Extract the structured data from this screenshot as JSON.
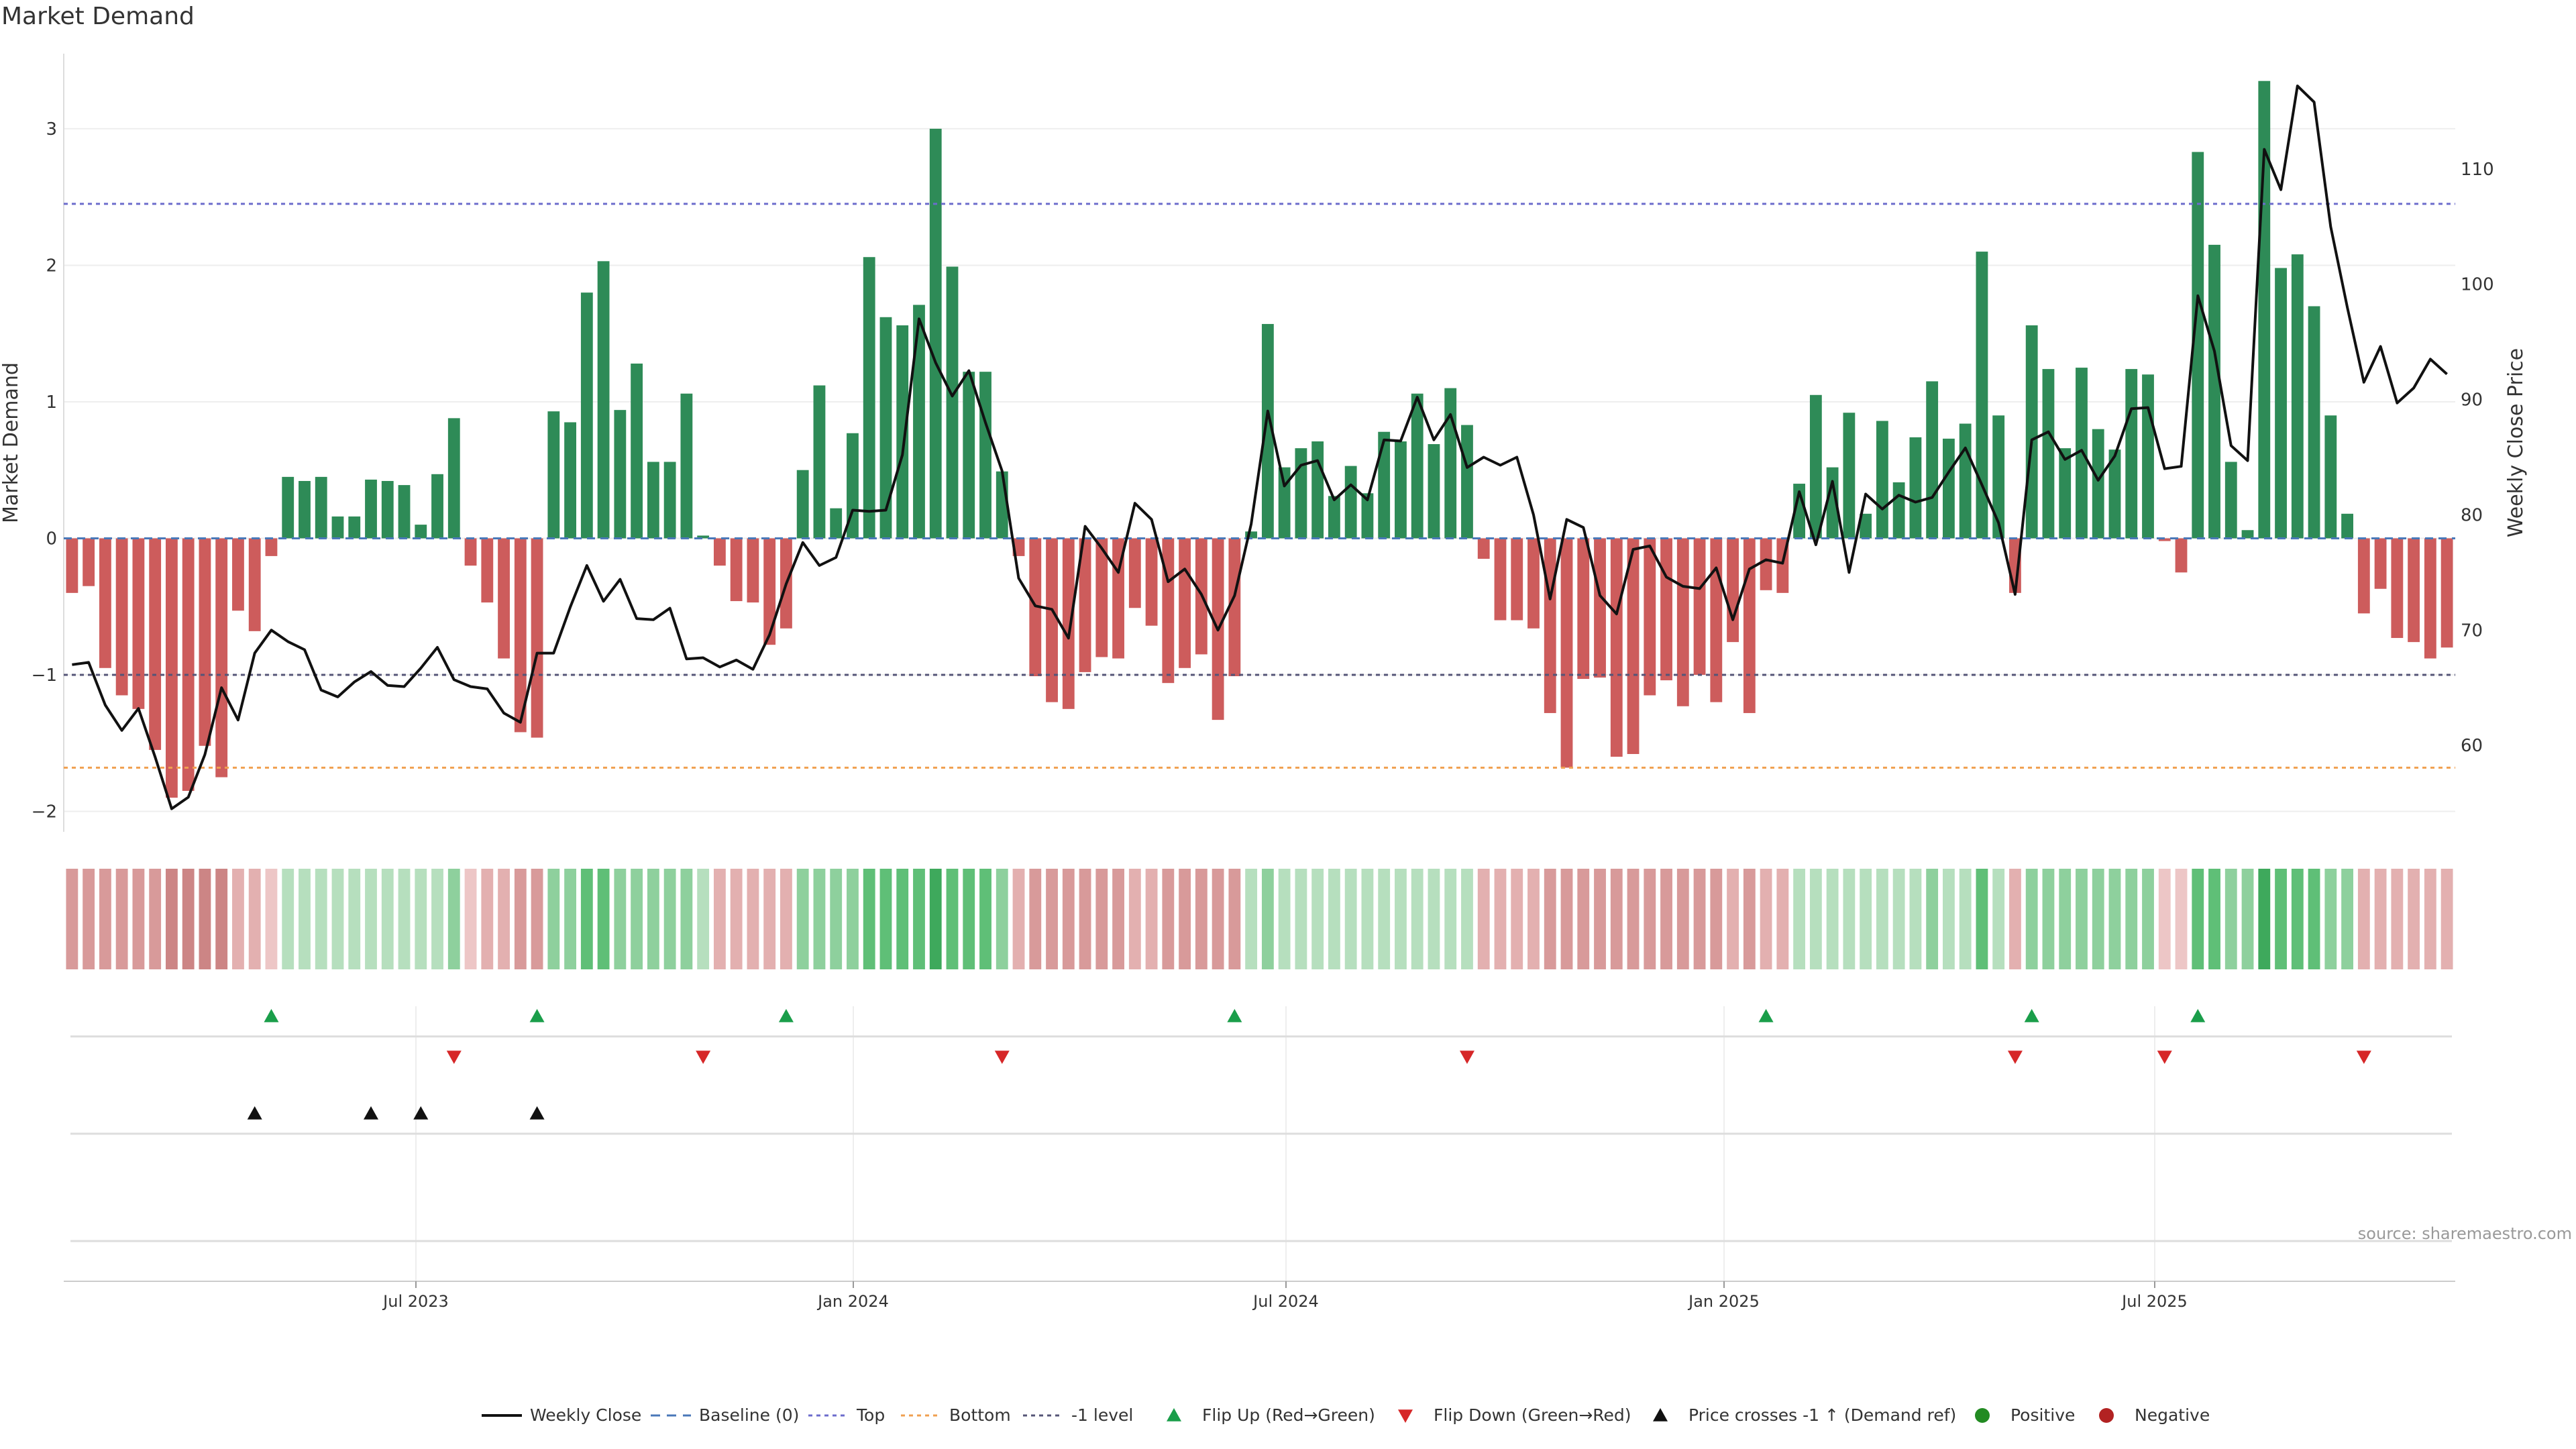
{
  "chart_data": {
    "type": "bar",
    "title": "Market Demand",
    "ylabel": "Market Demand",
    "y2label": "Weekly Close Price",
    "ylim": [
      -2.15,
      3.55
    ],
    "y2lim": [
      52.5,
      120.0
    ],
    "yticks": [
      -2,
      -1,
      0,
      1,
      2,
      3
    ],
    "y2ticks": [
      60,
      70,
      80,
      90,
      100,
      110
    ],
    "xticks": [
      "Jul 2023",
      "Jan 2024",
      "Jul 2024",
      "Jan 2025",
      "Jul 2025"
    ],
    "reference_lines": {
      "baseline": 0,
      "top": 2.45,
      "bottom": -1.68,
      "minus1": -1
    },
    "demand": [
      -0.4,
      -0.35,
      -0.95,
      -1.15,
      -1.25,
      -1.55,
      -1.9,
      -1.85,
      -1.52,
      -1.75,
      -0.53,
      -0.68,
      -0.13,
      0.45,
      0.42,
      0.45,
      0.16,
      0.16,
      0.43,
      0.42,
      0.39,
      0.1,
      0.47,
      0.88,
      -0.2,
      -0.47,
      -0.88,
      -1.42,
      -1.46,
      0.93,
      0.85,
      1.8,
      2.03,
      0.94,
      1.28,
      0.56,
      0.56,
      1.06,
      0.02,
      -0.2,
      -0.46,
      -0.47,
      -0.78,
      -0.66,
      0.5,
      1.12,
      0.22,
      0.77,
      2.06,
      1.62,
      1.56,
      1.71,
      3.0,
      1.99,
      1.22,
      1.22,
      0.49,
      -0.13,
      -1.01,
      -1.2,
      -1.25,
      -0.98,
      -0.87,
      -0.88,
      -0.51,
      -0.64,
      -1.06,
      -0.95,
      -0.85,
      -1.33,
      -1.01,
      0.05,
      1.57,
      0.52,
      0.66,
      0.71,
      0.31,
      0.53,
      0.33,
      0.78,
      0.71,
      1.06,
      0.69,
      1.1,
      0.83,
      -0.15,
      -0.6,
      -0.6,
      -0.66,
      -1.28,
      -1.68,
      -1.03,
      -1.02,
      -1.6,
      -1.58,
      -1.15,
      -1.04,
      -1.23,
      -1.0,
      -1.2,
      -0.76,
      -1.28,
      -0.38,
      -0.4,
      0.4,
      1.05,
      0.52,
      0.92,
      0.18,
      0.86,
      0.41,
      0.74,
      1.15,
      0.73,
      0.84,
      2.1,
      0.9,
      -0.4,
      1.56,
      1.24,
      0.66,
      1.25,
      0.8,
      0.65,
      1.24,
      1.2,
      -0.02,
      -0.25,
      2.83,
      2.15,
      0.56,
      0.06,
      3.35,
      1.98,
      2.08,
      1.7,
      0.9,
      0.18,
      -0.55,
      -0.37,
      -0.73,
      -0.76,
      -0.88,
      -0.8
    ],
    "price": [
      67.0,
      67.2,
      63.5,
      61.3,
      63.2,
      59.0,
      54.5,
      55.5,
      59.2,
      65.0,
      62.2,
      68.0,
      70.0,
      69.0,
      68.3,
      64.8,
      64.2,
      65.5,
      66.4,
      65.2,
      65.1,
      66.7,
      68.5,
      65.7,
      65.1,
      64.9,
      62.8,
      62.0,
      68.0,
      68.0,
      72.0,
      75.6,
      72.5,
      74.4,
      71.0,
      70.9,
      71.9,
      67.5,
      67.6,
      66.8,
      67.4,
      66.6,
      69.6,
      74.0,
      77.6,
      75.6,
      76.3,
      80.4,
      80.3,
      80.4,
      85.2,
      97.0,
      93.2,
      90.3,
      92.5,
      88.0,
      83.8,
      74.5,
      72.1,
      71.8,
      69.3,
      79.0,
      77.1,
      75.0,
      81.0,
      79.6,
      74.2,
      75.3,
      73.1,
      70.0,
      73.0,
      79.2,
      89.0,
      82.5,
      84.3,
      84.7,
      81.3,
      82.6,
      81.3,
      86.5,
      86.4,
      90.2,
      86.5,
      88.7,
      84.1,
      85.0,
      84.3,
      85.0,
      80.0,
      72.7,
      79.6,
      78.9,
      73.0,
      71.4,
      77.0,
      77.3,
      74.6,
      73.8,
      73.6,
      75.4,
      70.9,
      75.3,
      76.1,
      75.8,
      82.0,
      77.4,
      82.9,
      75.0,
      81.8,
      80.5,
      81.7,
      81.1,
      81.5,
      83.7,
      85.8,
      82.6,
      79.3,
      73.1,
      86.5,
      87.2,
      84.8,
      85.6,
      83.0,
      85.1,
      89.2,
      89.3,
      84.0,
      84.2,
      99.0,
      94.2,
      86.0,
      84.7,
      111.7,
      108.2,
      117.2,
      115.8,
      105.0,
      98.0,
      91.5,
      94.6,
      89.7,
      91.0,
      93.5,
      92.2
    ],
    "shade": [
      3,
      3,
      3,
      3,
      3,
      3,
      4,
      4,
      4,
      4,
      2,
      2,
      1,
      1,
      1,
      1,
      1,
      1,
      1,
      1,
      1,
      1,
      1,
      2,
      1,
      2,
      2,
      3,
      3,
      2,
      2,
      3,
      3,
      2,
      2,
      2,
      2,
      2,
      1,
      2,
      2,
      2,
      2,
      2,
      2,
      2,
      2,
      2,
      3,
      3,
      3,
      3,
      4,
      3,
      3,
      3,
      2,
      2,
      3,
      3,
      3,
      3,
      3,
      3,
      2,
      2,
      3,
      3,
      3,
      3,
      3,
      1,
      2,
      1,
      1,
      1,
      1,
      1,
      1,
      1,
      1,
      1,
      1,
      1,
      1,
      2,
      2,
      2,
      2,
      3,
      3,
      3,
      3,
      3,
      3,
      3,
      3,
      3,
      3,
      3,
      2,
      3,
      2,
      2,
      1,
      1,
      1,
      1,
      1,
      1,
      1,
      1,
      2,
      1,
      1,
      3,
      1,
      2,
      2,
      2,
      2,
      2,
      2,
      2,
      2,
      2,
      1,
      1,
      3,
      3,
      2,
      2,
      4,
      3,
      3,
      3,
      2,
      2,
      2,
      2,
      2,
      2,
      2,
      2
    ],
    "flip_up": [
      12,
      28,
      43,
      70,
      102,
      118,
      128
    ],
    "flip_down": [
      23,
      38,
      56,
      84,
      117,
      126,
      138
    ],
    "price_crosses": [
      11,
      18,
      21,
      28
    ],
    "legend": [
      {
        "key": "weekly_close",
        "label": "Weekly Close"
      },
      {
        "key": "baseline",
        "label": "Baseline (0)"
      },
      {
        "key": "top",
        "label": "Top"
      },
      {
        "key": "bottom",
        "label": "Bottom"
      },
      {
        "key": "minus1",
        "label": "-1 level"
      },
      {
        "key": "flip_up",
        "label": "Flip Up (Red→Green)"
      },
      {
        "key": "flip_down",
        "label": "Flip Down (Green→Red)"
      },
      {
        "key": "price_cross",
        "label": "Price crosses -1 ↑ (Demand ref)"
      },
      {
        "key": "positive",
        "label": "Positive"
      },
      {
        "key": "negative",
        "label": "Negative"
      }
    ],
    "source": "source: sharemaestro.com"
  },
  "colors": {
    "positive": "#2e8b57",
    "negative": "#cd5c5c",
    "flip_up": "#1a9e4a",
    "flip_down": "#d62728",
    "cross": "#111111",
    "top": "#6c6ccc",
    "bottom": "#f0a050",
    "minus1": "#555577",
    "grid": "#eeeeee",
    "positive_dot": "#228b22",
    "negative_dot": "#b22222",
    "heat_green": [
      "#d5ecd9",
      "#b6dfbe",
      "#8ed09d",
      "#5fbf77",
      "#3ea95c"
    ],
    "heat_red": [
      "#f6dada",
      "#edc6c6",
      "#e3b0b0",
      "#d89a9a",
      "#cc8585"
    ]
  }
}
